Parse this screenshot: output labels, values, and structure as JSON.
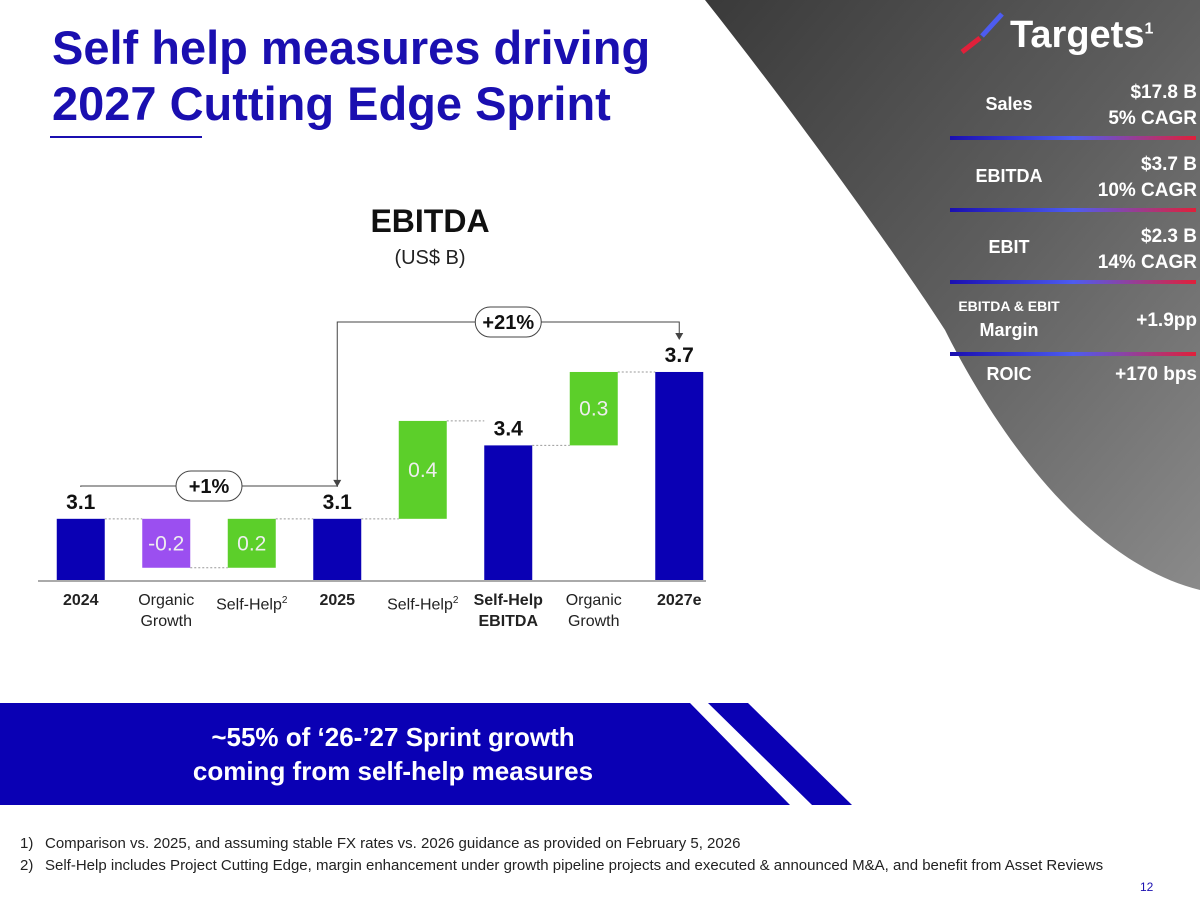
{
  "title": [
    "Self help measures driving",
    "2027 Cutting Edge Sprint"
  ],
  "targets": {
    "title": "Targets",
    "note": "1",
    "rows": [
      {
        "label": [
          "Sales"
        ],
        "value": [
          "$17.8 B",
          "5% CAGR"
        ]
      },
      {
        "label": [
          "EBITDA"
        ],
        "value": [
          "$3.7 B",
          "10% CAGR"
        ]
      },
      {
        "label": [
          "EBIT"
        ],
        "value": [
          "$2.3 B",
          "14% CAGR"
        ]
      },
      {
        "label": [
          "EBITDA & EBIT",
          "Margin"
        ],
        "value": [
          "+1.9pp"
        ]
      },
      {
        "label": [
          "ROIC"
        ],
        "value": [
          "+170 bps"
        ]
      }
    ]
  },
  "chart_data": {
    "type": "waterfall",
    "title": "EBITDA",
    "subtitle": "(US$ B)",
    "categories": [
      "2024",
      "Organic Growth",
      "Self-Help",
      "2025",
      "Self-Help",
      "Self-Help EBITDA",
      "Organic Growth",
      "2027e"
    ],
    "category_notes": [
      null,
      null,
      "2",
      null,
      "2",
      null,
      null,
      null
    ],
    "measures": [
      "total",
      "relative",
      "relative",
      "total",
      "relative",
      "total",
      "relative",
      "total"
    ],
    "values": [
      3.1,
      -0.2,
      0.2,
      3.1,
      0.4,
      3.4,
      0.3,
      3.7
    ],
    "total_color": "#0a00b4",
    "increase_color": "#5ccf2a",
    "decrease_color": "#9b4ff0",
    "ylim": [
      2.85,
      3.8
    ],
    "annotations": [
      "+1%",
      "+21%"
    ]
  },
  "banner": [
    "~55% of ‘26-’27 Sprint growth",
    "coming from self-help measures"
  ],
  "footnotes": [
    {
      "marker": "1)",
      "text": "Comparison vs. 2025, and assuming stable FX rates vs. 2026 guidance as provided on February 5, 2026"
    },
    {
      "marker": "2)",
      "text": "Self-Help includes Project Cutting Edge, margin enhancement under growth pipeline projects and executed & announced M&A, and benefit from Asset Reviews"
    }
  ],
  "page_number": "12"
}
